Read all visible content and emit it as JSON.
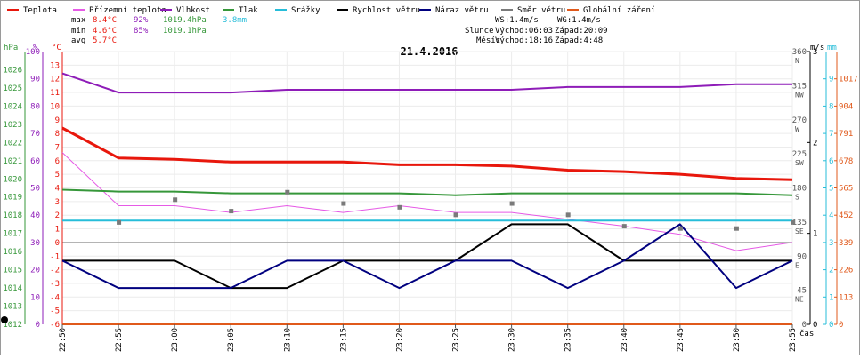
{
  "legend": [
    {
      "label": "Teplota",
      "color": "#e8170c"
    },
    {
      "label": "Přízemní teplota",
      "color": "#e65ae6"
    },
    {
      "label": "Vlhkost",
      "color": "#8e1cb8"
    },
    {
      "label": "Tlak",
      "color": "#36973a"
    },
    {
      "label": "Srážky",
      "color": "#27bdd9"
    },
    {
      "label": "Rychlost větru",
      "color": "#000000"
    },
    {
      "label": "Náraz větru",
      "color": "#00007f"
    },
    {
      "label": "Směr větru",
      "color": "#7a7a7a"
    },
    {
      "label": "Globální záření",
      "color": "#e0591b"
    }
  ],
  "stats": {
    "max": {
      "label": "max",
      "temp": "8.4°C",
      "hum": "92%",
      "press": "1019.4hPa",
      "rain": "3.8mm"
    },
    "min": {
      "label": "min",
      "temp": "4.6°C",
      "hum": "85%",
      "press": "1019.1hPa"
    },
    "avg": {
      "label": "avg",
      "temp": "5.7°C"
    }
  },
  "info": {
    "ws": "WS:1.4m/s",
    "wg": "WG:1.4m/s",
    "sun_label": "Slunce",
    "sun_rise": "Východ:06:03",
    "sun_set": "Západ:20:09",
    "moon_label": "Měsíc",
    "moon_rise": "Východ:18:16",
    "moon_set": "Západ:4:48"
  },
  "colors": {
    "temp": "#e8170c",
    "ground_temp": "#e65ae6",
    "humidity": "#8e1cb8",
    "pressure": "#36973a",
    "rain": "#27bdd9",
    "wind_speed": "#000000",
    "wind_gust": "#00007f",
    "wind_dir": "#7a7a7a",
    "radiation": "#e0591b",
    "axis_press": "#36973a",
    "axis_hum": "#8e1cb8",
    "axis_temp": "#e8170c",
    "axis_rain": "#27bdd9"
  },
  "chart_data": {
    "type": "line",
    "title": "21.4.2016",
    "xlabel": "čas",
    "categories": [
      "22:50",
      "22:55",
      "23:00",
      "23:05",
      "23:10",
      "23:15",
      "23:20",
      "23:25",
      "23:30",
      "23:35",
      "23:40",
      "23:45",
      "23:50",
      "23:55"
    ],
    "axes": {
      "pressure": {
        "unit": "hPa",
        "range": [
          1012,
          1027
        ],
        "ticks": [
          "1026",
          "1025",
          "1024",
          "1023",
          "1022",
          "1021",
          "1020",
          "1019",
          "1018",
          "1017",
          "1016",
          "1015",
          "1014",
          "1013",
          "1012"
        ]
      },
      "humidity": {
        "unit": "%",
        "range": [
          0,
          100
        ],
        "ticks": [
          "100",
          "90",
          "80",
          "70",
          "60",
          "50",
          "40",
          "30",
          "20",
          "10",
          "0"
        ]
      },
      "temperature": {
        "unit": "°C",
        "range": [
          -6,
          14
        ],
        "ticks": [
          "13",
          "12",
          "11",
          "10",
          "9",
          "8",
          "7",
          "6",
          "5",
          "4",
          "3",
          "2",
          "1",
          "0",
          "-1",
          "-2",
          "-3",
          "-4",
          "-5",
          "-6"
        ]
      },
      "wind_dir": {
        "range": [
          0,
          360
        ],
        "ticks": [
          "360",
          "315",
          "270",
          "225",
          "180",
          "135",
          "90",
          "45",
          "0"
        ],
        "names": [
          "N",
          "NW",
          "W",
          "SW",
          "S",
          "SE",
          "E",
          "NE",
          ""
        ]
      },
      "wind": {
        "unit": "m/s",
        "range": [
          0,
          3
        ],
        "ticks": [
          "3",
          "2",
          "1",
          "0"
        ]
      },
      "rain": {
        "unit": "mm",
        "range": [
          0,
          10
        ],
        "ticks": [
          "9",
          "8",
          "7",
          "6",
          "5",
          "4",
          "3",
          "2",
          "1",
          "0"
        ]
      },
      "radiation": {
        "range": [
          0,
          1130
        ],
        "ticks": [
          "1017",
          "904",
          "791",
          "678",
          "565",
          "452",
          "339",
          "226",
          "113",
          "0"
        ]
      }
    },
    "series": [
      {
        "name": "Teplota",
        "axis": "temperature",
        "values": [
          8.4,
          6.2,
          6.1,
          5.9,
          5.9,
          5.9,
          5.7,
          5.7,
          5.6,
          5.3,
          5.2,
          5.0,
          4.7,
          4.6
        ]
      },
      {
        "name": "Přízemní teplota",
        "axis": "temperature",
        "values": [
          6.6,
          2.7,
          2.7,
          2.2,
          2.7,
          2.2,
          2.7,
          2.2,
          2.2,
          1.7,
          1.2,
          0.6,
          -0.6,
          0.0
        ]
      },
      {
        "name": "Vlhkost",
        "axis": "humidity",
        "values": [
          92,
          85,
          85,
          85,
          86,
          86,
          86,
          86,
          86,
          87,
          87,
          87,
          88,
          88
        ]
      },
      {
        "name": "Tlak",
        "axis": "pressure",
        "values": [
          1019.4,
          1019.3,
          1019.3,
          1019.2,
          1019.2,
          1019.2,
          1019.2,
          1019.1,
          1019.2,
          1019.2,
          1019.2,
          1019.2,
          1019.2,
          1019.1
        ]
      },
      {
        "name": "Srážky",
        "axis": "rain",
        "values": [
          3.8,
          3.8,
          3.8,
          3.8,
          3.8,
          3.8,
          3.8,
          3.8,
          3.8,
          3.8,
          3.8,
          3.8,
          3.8,
          3.8
        ]
      },
      {
        "name": "Rychlost větru",
        "axis": "wind",
        "values": [
          0.7,
          0.7,
          0.7,
          0.4,
          0.4,
          0.7,
          0.7,
          0.7,
          1.1,
          1.1,
          0.7,
          0.7,
          0.7,
          0.7
        ]
      },
      {
        "name": "Náraz větru",
        "axis": "wind",
        "values": [
          0.7,
          0.4,
          0.4,
          0.4,
          0.7,
          0.7,
          0.4,
          0.7,
          0.7,
          0.4,
          0.7,
          1.1,
          0.4,
          0.7
        ]
      },
      {
        "name": "Směr větru",
        "axis": "wind_dir",
        "values": [
          null,
          135,
          165,
          150,
          175,
          160,
          155,
          145,
          160,
          145,
          130,
          127,
          127,
          135
        ]
      },
      {
        "name": "Globální záření",
        "axis": "radiation",
        "values": [
          0,
          0,
          0,
          0,
          0,
          0,
          0,
          0,
          0,
          0,
          0,
          0,
          0,
          0
        ]
      }
    ]
  }
}
